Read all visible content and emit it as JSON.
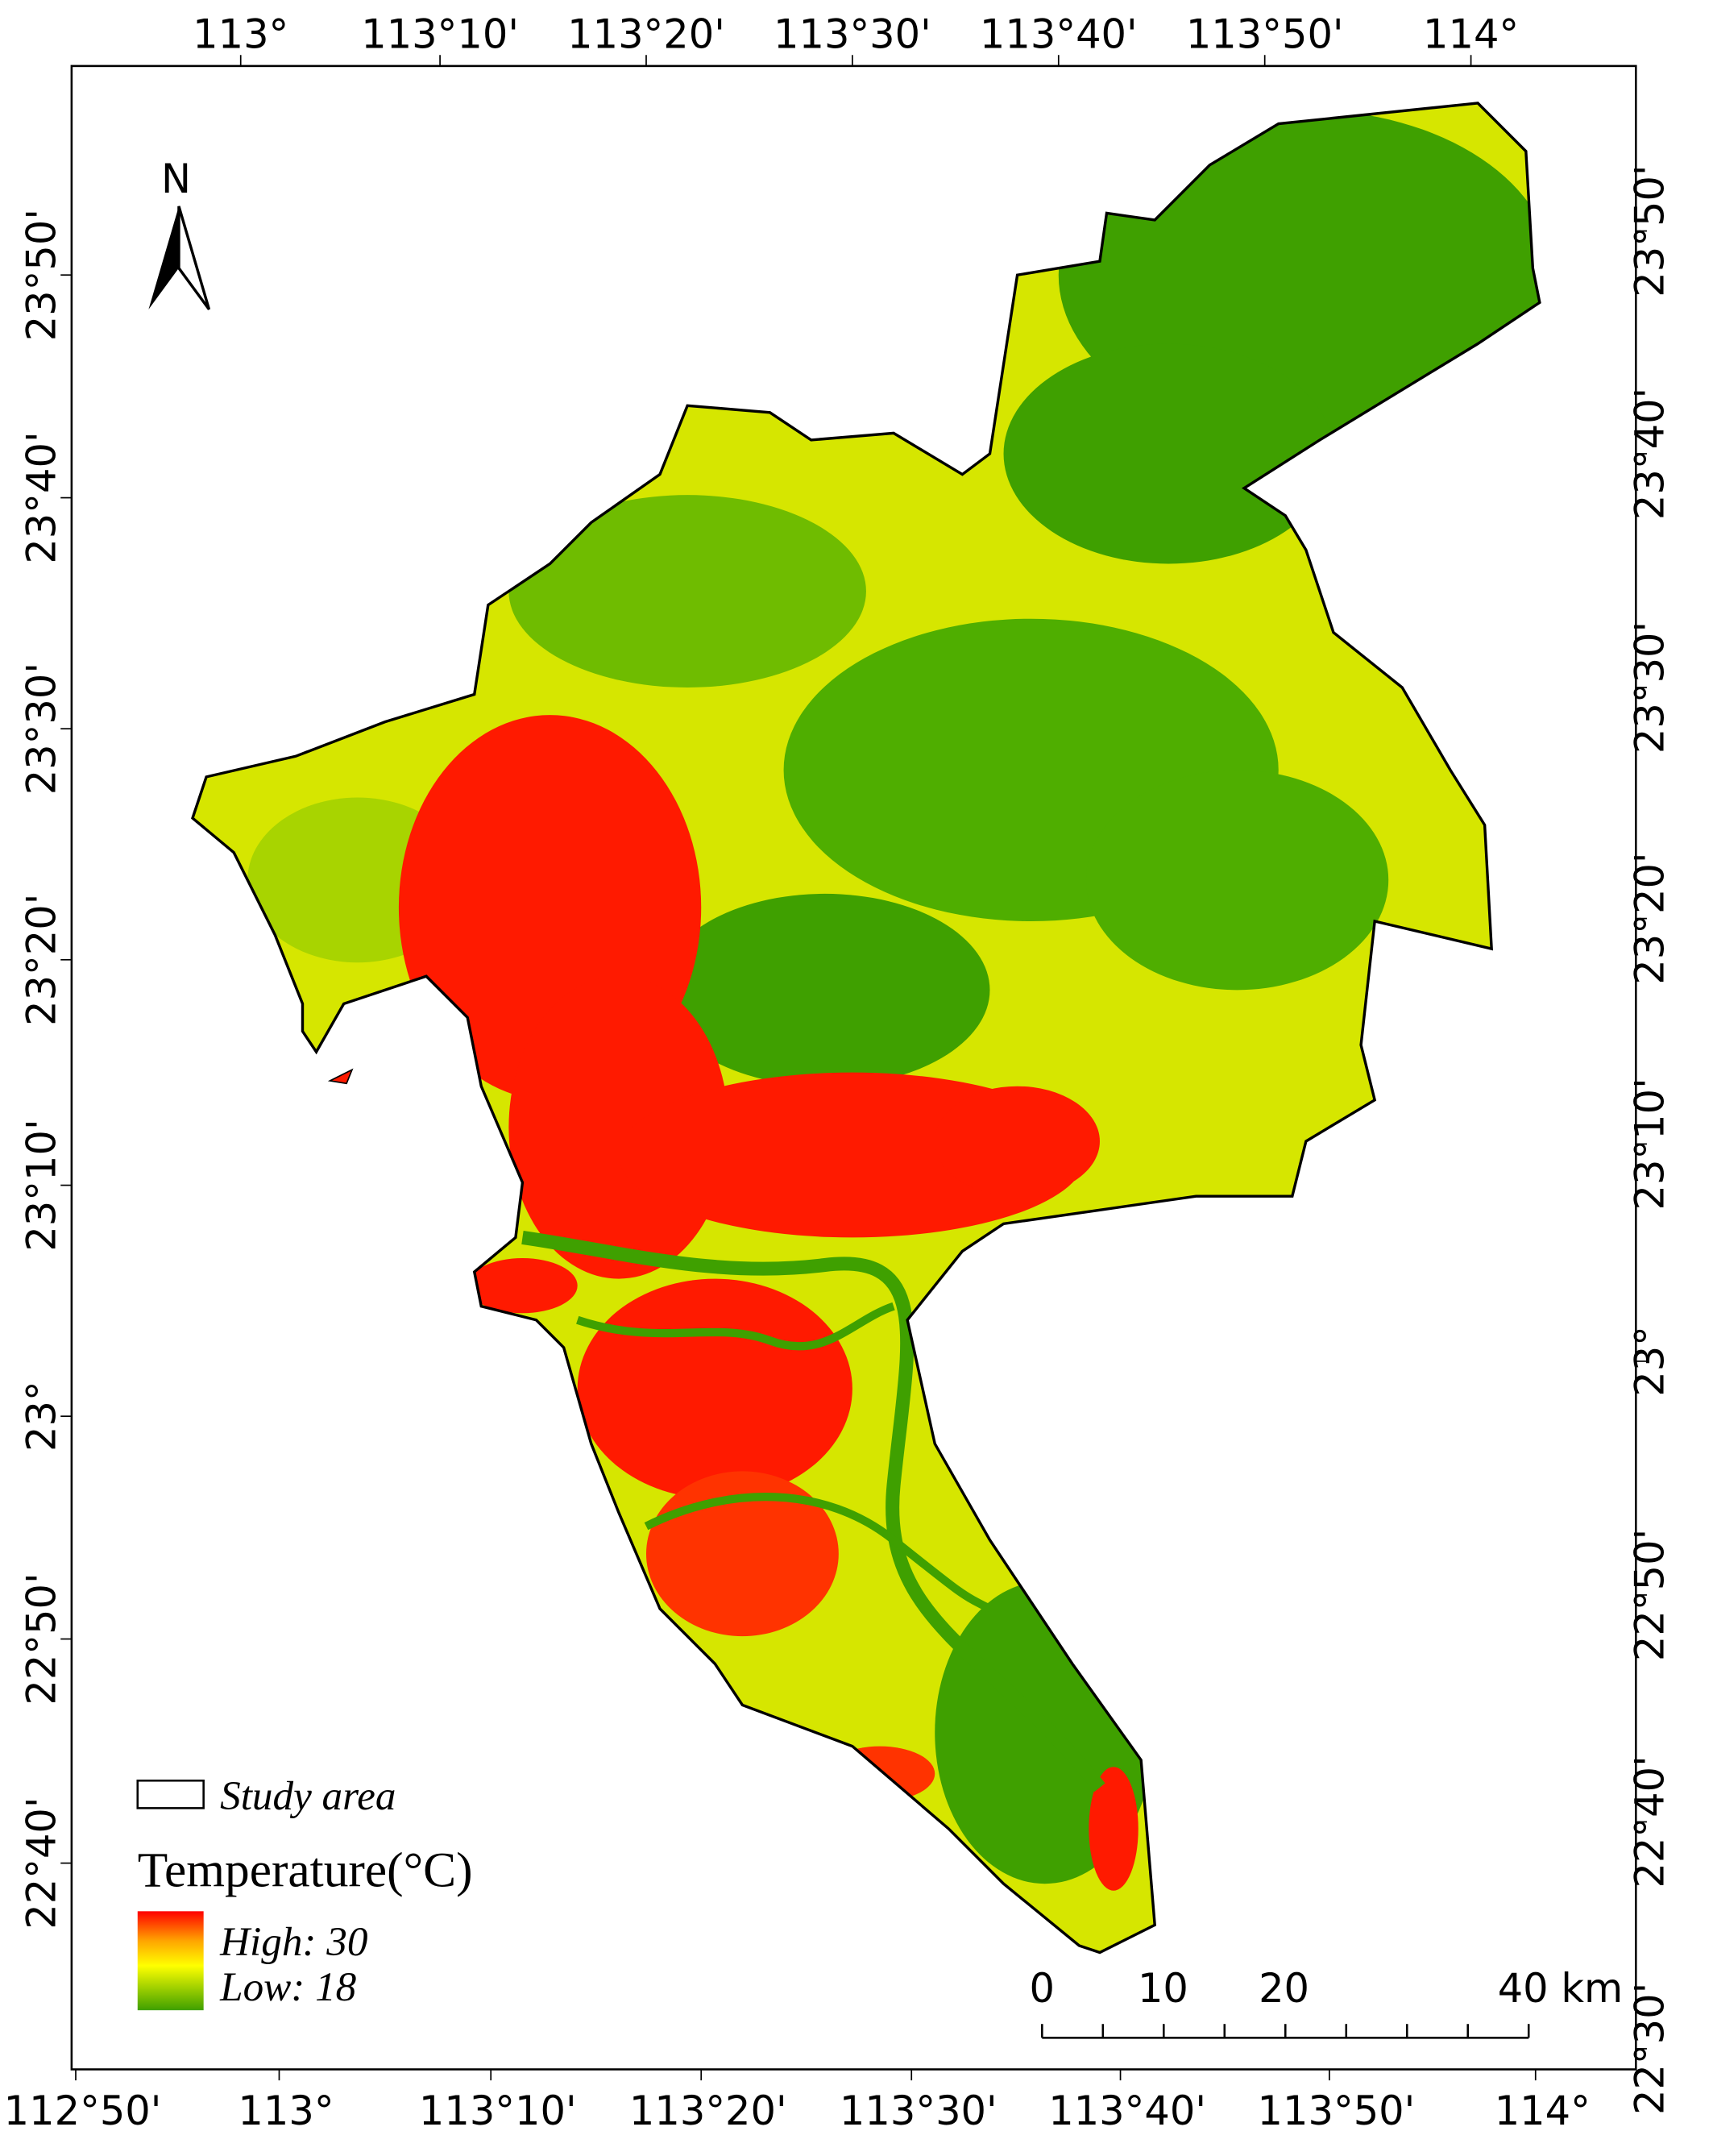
{
  "map": {
    "top_labels": [
      "113°",
      "113°10'",
      "113°20'",
      "113°30'",
      "113°40'",
      "113°50'",
      "114°"
    ],
    "bottom_labels": [
      "112°50'",
      "113°",
      "113°10'",
      "113°20'",
      "113°30'",
      "113°40'",
      "113°50'",
      "114°"
    ],
    "left_labels": [
      "23°50'",
      "23°40'",
      "23°30'",
      "23°20'",
      "23°10'",
      "23°",
      "22°50'",
      "22°40'"
    ],
    "right_labels": [
      "23°50'",
      "23°40'",
      "23°30'",
      "23°20'",
      "23°10'",
      "23°",
      "22°50'",
      "22°40'",
      "22°30'"
    ],
    "north": "N",
    "legend": {
      "study_area": "Study area",
      "title": "Temperature(°C)",
      "high": "High: 30",
      "low": "Low: 18"
    },
    "scale_bar": [
      "0",
      "10",
      "20",
      "40 km"
    ]
  }
}
